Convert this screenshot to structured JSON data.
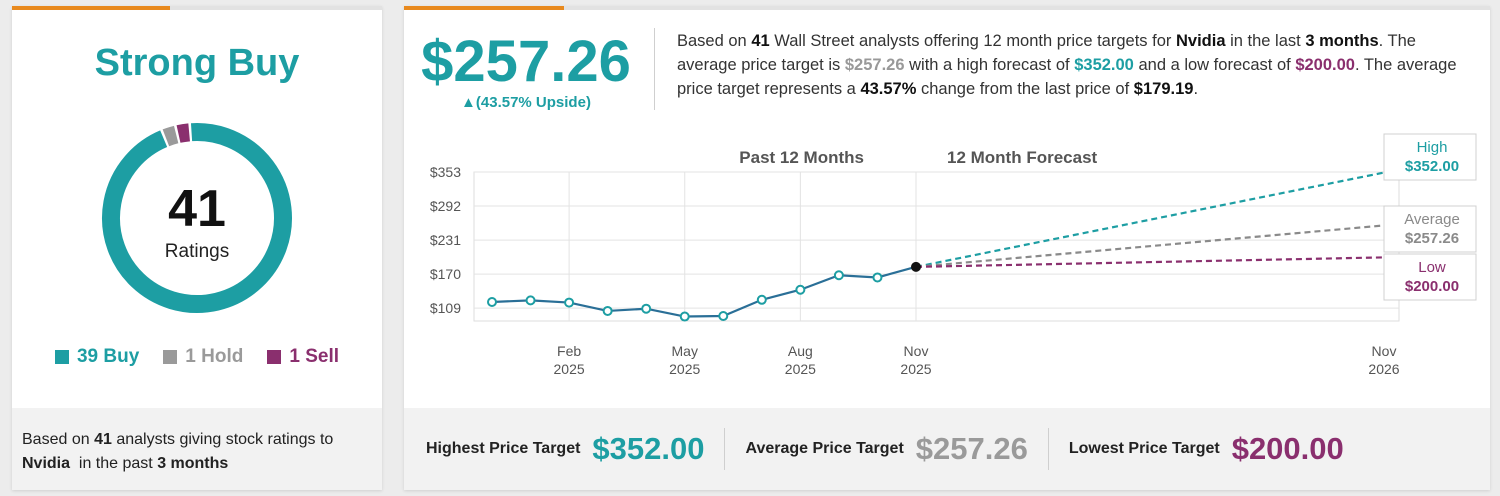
{
  "colors": {
    "buy": "#1d9ea3",
    "hold": "#9a9a9a",
    "sell": "#8a2f6e",
    "accent": "#e8891d",
    "history_line": "#2a6f97",
    "average_line": "#8a8a8a"
  },
  "ratings": {
    "consensus": "Strong Buy",
    "total": "41",
    "total_label": "Ratings",
    "legend": [
      {
        "label": "39 Buy",
        "count": 39,
        "color": "#1d9ea3"
      },
      {
        "label": "1 Hold",
        "count": 1,
        "color": "#9a9a9a"
      },
      {
        "label": "1 Sell",
        "count": 1,
        "color": "#8a2f6e"
      }
    ],
    "footer": {
      "prefix": "Based on",
      "count": "41",
      "middle": "analysts giving stock ratings to",
      "company": "Nvidia",
      "in_the_past": "in the past",
      "period": "3 months"
    }
  },
  "price_target": {
    "average": "$257.26",
    "upside": "▲(43.57% Upside)",
    "summary": {
      "t1": "Based on",
      "analysts": "41",
      "t2": "Wall Street analysts offering 12 month price targets for",
      "company": "Nvidia",
      "t3": "in the last",
      "period": "3 months",
      "t4": ". The average price target is",
      "avg": "$257.26",
      "t5": "with a high forecast of",
      "high": "$352.00",
      "t6": "and a low forecast of",
      "low": "$200.00",
      "t7": ". The average price target represents a",
      "change": "43.57%",
      "t8": "change from the last price of",
      "last": "$179.19",
      "t9": "."
    }
  },
  "chart_data": {
    "type": "line",
    "section_labels": [
      "Past 12 Months",
      "12 Month Forecast"
    ],
    "y_ticks": [
      "$353",
      "$292",
      "$231",
      "$170",
      "$109"
    ],
    "y_tick_values": [
      353,
      292,
      231,
      170,
      109
    ],
    "ylim": [
      86,
      353
    ],
    "x_ticks": [
      {
        "month": "Feb",
        "year": "2025"
      },
      {
        "month": "May",
        "year": "2025"
      },
      {
        "month": "Aug",
        "year": "2025"
      },
      {
        "month": "Nov",
        "year": "2025"
      },
      {
        "month": "Nov",
        "year": "2026"
      }
    ],
    "x_tick_positions_months": [
      2,
      5,
      8,
      11,
      23
    ],
    "grid": true,
    "series": [
      {
        "kind": "history",
        "x_months": [
          0,
          1,
          2,
          3,
          4,
          5,
          6,
          7,
          8,
          9,
          10,
          11
        ],
        "values": [
          120,
          123,
          119,
          104,
          108,
          94,
          95,
          124,
          142,
          168,
          164,
          183
        ],
        "last_price": 179.19
      }
    ],
    "forecast": [
      {
        "name": "High",
        "value": 352.0,
        "label": "$352.00",
        "color": "#1d9ea3"
      },
      {
        "name": "Average",
        "value": 257.26,
        "label": "$257.26",
        "color": "#8a8a8a"
      },
      {
        "name": "Low",
        "value": 200.0,
        "label": "$200.00",
        "color": "#8a2f6e"
      }
    ]
  },
  "bottom_bar": {
    "highest_label": "Highest Price Target",
    "highest_value": "$352.00",
    "average_label": "Average Price Target",
    "average_value": "$257.26",
    "lowest_label": "Lowest Price Target",
    "lowest_value": "$200.00"
  }
}
